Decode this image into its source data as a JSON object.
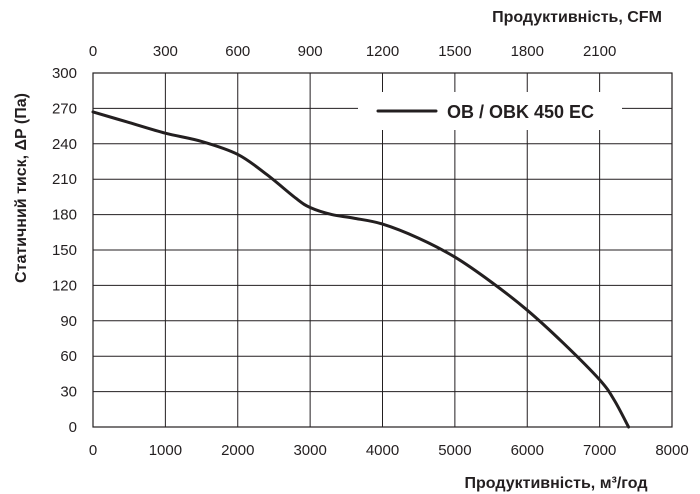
{
  "chart_data": {
    "type": "line",
    "xlabel": "Продуктивність, м³/год",
    "x2label": "Продуктивність, CFM",
    "ylabel": "Статичний тиск, ΔP (Па)",
    "xlim": [
      0,
      8000
    ],
    "x2lim": [
      0,
      2400
    ],
    "ylim": [
      0,
      300
    ],
    "x_ticks": [
      0,
      1000,
      2000,
      3000,
      4000,
      5000,
      6000,
      7000,
      8000
    ],
    "x2_ticks": [
      0,
      300,
      600,
      900,
      1200,
      1500,
      1800,
      2100
    ],
    "y_ticks": [
      0,
      30,
      60,
      90,
      120,
      150,
      180,
      210,
      240,
      270,
      300
    ],
    "grid": true,
    "legend_position": "top-right",
    "series": [
      {
        "name": "OB / OBK 450 EC",
        "x": [
          0,
          500,
          1000,
          1500,
          2000,
          2400,
          2800,
          3000,
          3300,
          3600,
          4000,
          4500,
          5000,
          5500,
          6000,
          6500,
          7000,
          7200,
          7400
        ],
        "y": [
          267,
          258,
          249,
          242,
          231,
          214,
          194,
          186,
          180,
          177,
          172,
          160,
          144,
          123,
          99,
          71,
          40,
          23,
          0
        ]
      }
    ]
  }
}
